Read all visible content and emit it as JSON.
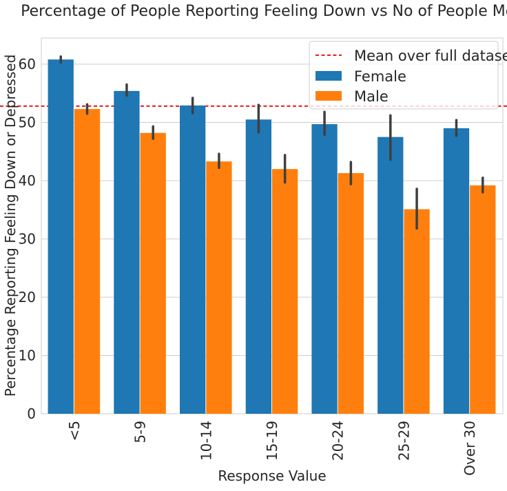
{
  "chart_data": {
    "type": "bar",
    "title": "Percentage of People Reporting Feeling Down vs No of People Met",
    "xlabel": "Response Value",
    "ylabel": "Percentage Reporting Feeling Down or Depressed",
    "categories": [
      "<5",
      "5-9",
      "10-14",
      "15-19",
      "20-24",
      "25-29",
      "Over 30"
    ],
    "ylim": [
      0,
      64.5
    ],
    "yticks": [
      0,
      10,
      20,
      30,
      40,
      50,
      60
    ],
    "grid": true,
    "legend_position": "top-right",
    "series": [
      {
        "name": "Female",
        "color": "#1f77b4",
        "values": [
          60.8,
          55.4,
          52.9,
          50.5,
          49.7,
          47.5,
          49.0
        ],
        "err_low": [
          60.3,
          54.6,
          51.6,
          48.3,
          47.9,
          43.6,
          47.7
        ],
        "err_high": [
          61.3,
          56.5,
          54.2,
          53.0,
          51.8,
          51.2,
          50.4
        ]
      },
      {
        "name": "Male",
        "color": "#ff7f0e",
        "values": [
          52.3,
          48.2,
          43.3,
          42.0,
          41.3,
          35.1,
          39.2
        ],
        "err_low": [
          51.5,
          47.2,
          42.2,
          39.7,
          39.4,
          31.8,
          38.0
        ],
        "err_high": [
          53.1,
          49.3,
          44.6,
          44.4,
          43.2,
          38.6,
          40.5
        ]
      }
    ],
    "reference_line": {
      "name": "Mean over full dataset",
      "value": 52.8,
      "color": "#e31a1c",
      "style": "dashed"
    }
  }
}
